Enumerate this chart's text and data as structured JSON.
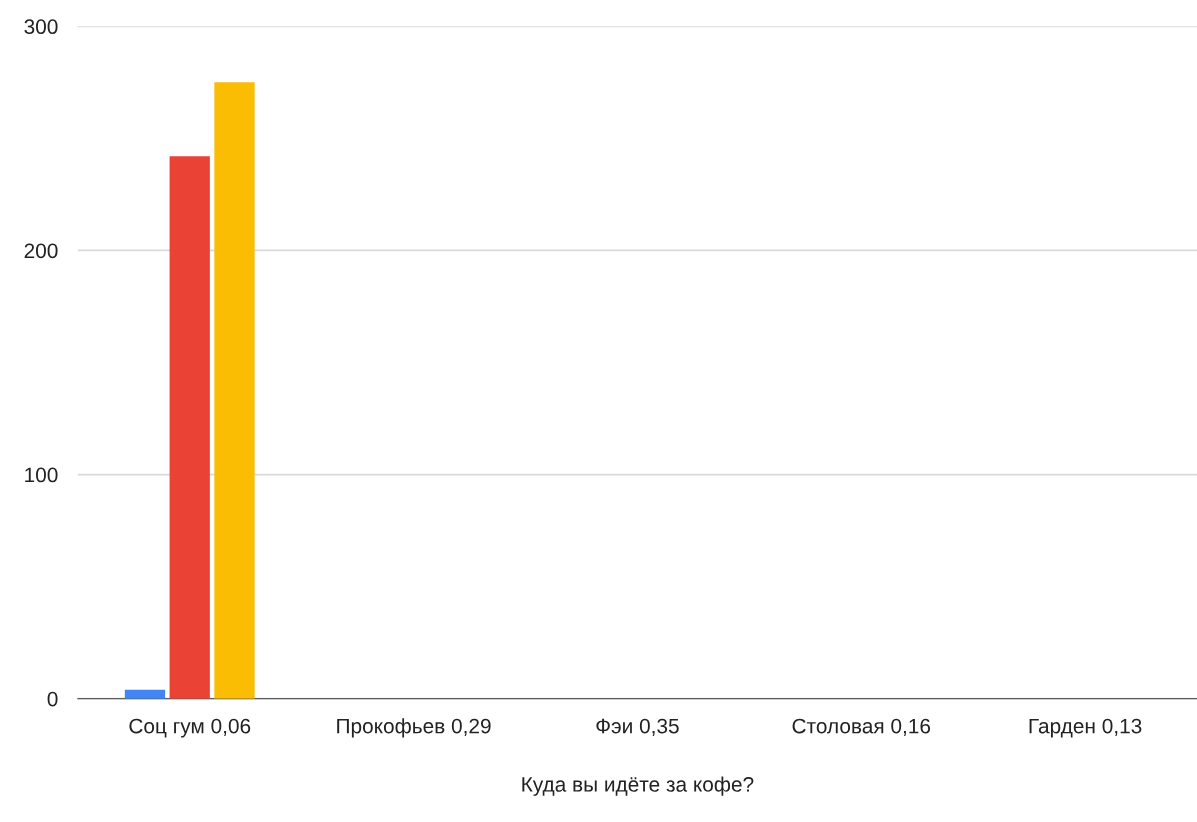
{
  "chart_data": {
    "type": "bar",
    "xlabel": "Куда вы идёте за кофе?",
    "categories": [
      "Соц гум 0,06",
      "Прокофьев 0,29",
      "Фэи 0,35",
      "Столовая 0,16",
      "Гарден 0,13"
    ],
    "series": [
      {
        "color": "#4285f4",
        "values": [
          4,
          null,
          null,
          null,
          null
        ]
      },
      {
        "color": "#ea4335",
        "values": [
          242,
          null,
          null,
          null,
          null
        ]
      },
      {
        "color": "#fbbc04",
        "values": [
          275,
          null,
          null,
          null,
          null
        ]
      }
    ],
    "ylim": [
      0,
      300
    ],
    "yticks": [
      0,
      100,
      200,
      300
    ],
    "grid": "y",
    "legend": false
  }
}
